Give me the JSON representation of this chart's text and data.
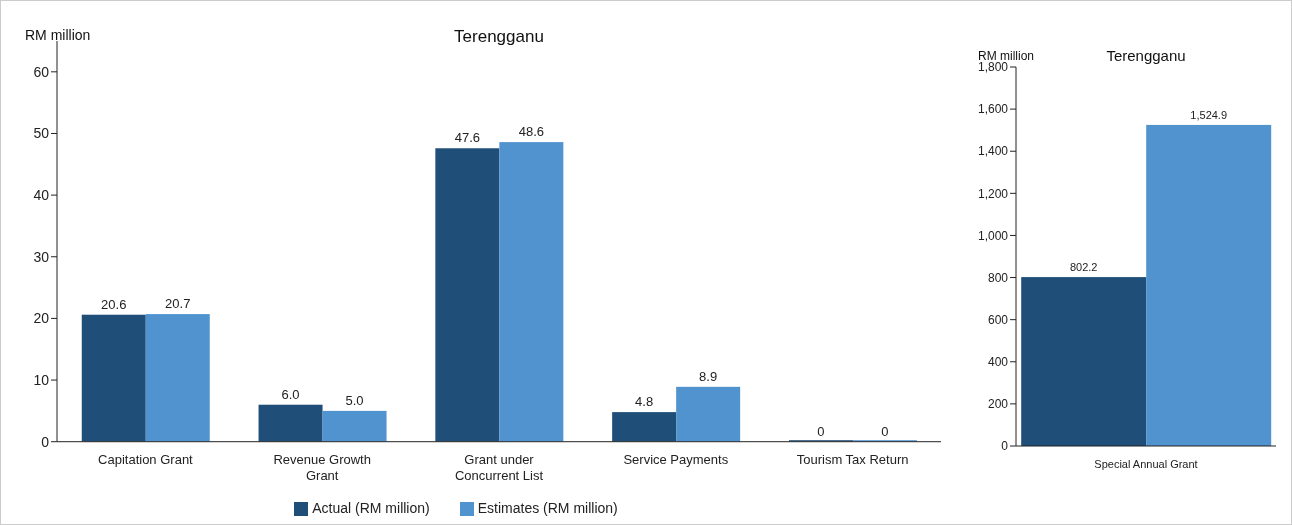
{
  "chart_data": [
    {
      "type": "bar",
      "title": "Terengganu",
      "ylabel": "RM million",
      "categories": [
        "Capitation Grant",
        "Revenue Growth Grant",
        "Grant under Concurrent List",
        "Service Payments",
        "Tourism Tax Return"
      ],
      "series": [
        {
          "name": "Actual (RM million)",
          "color": "#1f4e79",
          "values": [
            20.6,
            6.0,
            47.6,
            4.8,
            0
          ],
          "value_labels": [
            "20.6",
            "6.0",
            "47.6",
            "4.8",
            "0"
          ]
        },
        {
          "name": "Estimates (RM million)",
          "color": "#5093cf",
          "values": [
            20.7,
            5.0,
            48.6,
            8.9,
            0
          ],
          "value_labels": [
            "20.7",
            "5.0",
            "48.6",
            "8.9",
            "0"
          ]
        }
      ],
      "ylim": [
        0,
        65
      ],
      "yticks": [
        0,
        10,
        20,
        30,
        40,
        50,
        60
      ],
      "grid": false,
      "legend": "bottom"
    },
    {
      "type": "bar",
      "title": "Terengganu",
      "ylabel": "RM million",
      "categories": [
        "Special Annual Grant"
      ],
      "series": [
        {
          "color": "#1f4e79",
          "values": [
            802.2
          ],
          "value_labels": [
            "802.2"
          ]
        },
        {
          "color": "#5093cf",
          "values": [
            1524.9
          ],
          "value_labels": [
            "1,524.9"
          ]
        }
      ],
      "ylim": [
        0,
        1800
      ],
      "yticks": [
        0,
        {
          "value": 200,
          "label": "200"
        },
        400,
        600,
        800,
        {
          "value": 1000,
          "label": "1,000"
        },
        {
          "value": 1200,
          "label": "1,200"
        },
        {
          "value": 1400,
          "label": "1,400"
        },
        {
          "value": 1600,
          "label": "1,600"
        },
        {
          "value": 1800,
          "label": "1,800"
        }
      ],
      "grid": false,
      "legend": false
    }
  ]
}
